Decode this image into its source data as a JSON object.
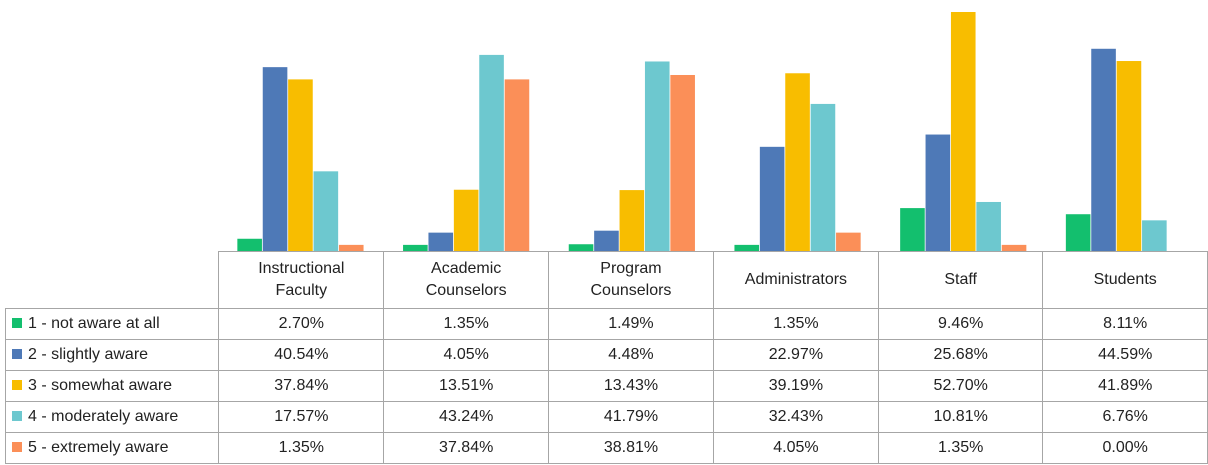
{
  "chart_data": {
    "type": "bar",
    "categories": [
      "Instructional Faculty",
      "Academic Counselors",
      "Program Counselors",
      "Administrators",
      "Staff",
      "Students"
    ],
    "series": [
      {
        "name": "1 - not aware at all",
        "color": "#13bf6e",
        "values": [
          2.7,
          1.35,
          1.49,
          1.35,
          9.46,
          8.11
        ],
        "value_labels": [
          "2.70%",
          "1.35%",
          "1.49%",
          "1.35%",
          "9.46%",
          "8.11%"
        ]
      },
      {
        "name": "2 - slightly aware",
        "color": "#4e79b7",
        "values": [
          40.54,
          4.05,
          4.48,
          22.97,
          25.68,
          44.59
        ],
        "value_labels": [
          "40.54%",
          "4.05%",
          "4.48%",
          "22.97%",
          "25.68%",
          "44.59%"
        ]
      },
      {
        "name": "3 - somewhat aware",
        "color": "#f8bd00",
        "values": [
          37.84,
          13.51,
          13.43,
          39.19,
          52.7,
          41.89
        ],
        "value_labels": [
          "37.84%",
          "13.51%",
          "13.43%",
          "39.19%",
          "52.70%",
          "41.89%"
        ]
      },
      {
        "name": "4 - moderately aware",
        "color": "#6dc8cf",
        "values": [
          17.57,
          43.24,
          41.79,
          32.43,
          10.81,
          6.76
        ],
        "value_labels": [
          "17.57%",
          "43.24%",
          "41.79%",
          "32.43%",
          "10.81%",
          "6.76%"
        ]
      },
      {
        "name": "5 - extremely aware",
        "color": "#fb8f58",
        "values": [
          1.35,
          37.84,
          38.81,
          4.05,
          1.35,
          0
        ],
        "value_labels": [
          "1.35%",
          "37.84%",
          "38.81%",
          "4.05%",
          "1.35%",
          "0.00%"
        ]
      }
    ]
  }
}
